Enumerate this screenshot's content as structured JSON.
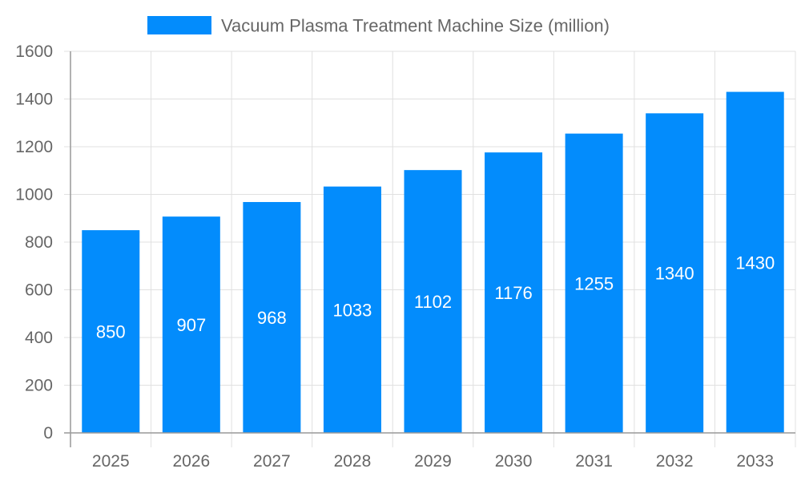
{
  "chart_data": {
    "type": "bar",
    "categories": [
      "2025",
      "2026",
      "2027",
      "2028",
      "2029",
      "2030",
      "2031",
      "2032",
      "2033"
    ],
    "series": [
      {
        "name": "Vacuum Plasma Treatment Machine Size (million)",
        "values": [
          850,
          907,
          968,
          1033,
          1102,
          1176,
          1255,
          1340,
          1430
        ]
      }
    ],
    "ylim": [
      0,
      1600
    ],
    "yticks": [
      0,
      200,
      400,
      600,
      800,
      1000,
      1200,
      1400,
      1600
    ],
    "grid": true,
    "legend": "top",
    "data_labels": "inside-center",
    "colors": {
      "bar": "#038cfc",
      "grid": "#e0e0e0",
      "axis": "#999999",
      "text": "#666666",
      "label": "#ffffff"
    }
  }
}
